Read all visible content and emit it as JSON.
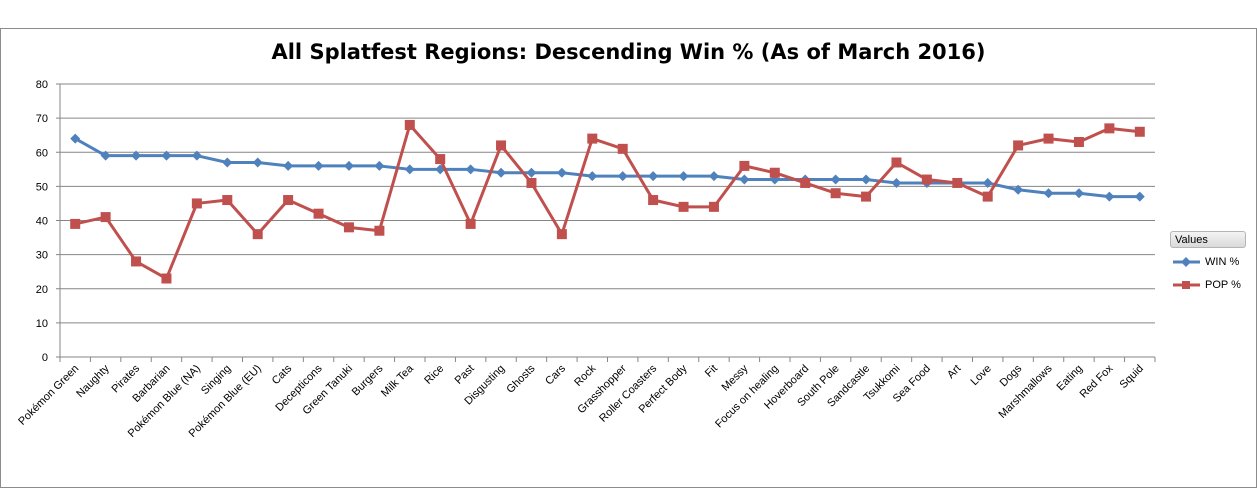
{
  "chart_data": {
    "type": "line",
    "title": "All Splatfest Regions: Descending Win % (As of March 2016)",
    "xlabel": "",
    "ylabel": "",
    "ylim": [
      0,
      80
    ],
    "yticks": [
      0,
      10,
      20,
      30,
      40,
      50,
      60,
      70,
      80
    ],
    "grid": true,
    "legend_title": "Values",
    "legend_position": "right",
    "categories": [
      "Pokémon Green",
      "Naughty",
      "Pirates",
      "Barbarian",
      "Pokémon Blue (NA)",
      "Singing",
      "Pokémon Blue (EU)",
      "Cats",
      "Decepticons",
      "Green Tanuki",
      "Burgers",
      "Milk Tea",
      "Rice",
      "Past",
      "Disgusting",
      "Ghosts",
      "Cars",
      "Rock",
      "Grasshopper",
      "Roller Coasters",
      "Perfect Body",
      "Fit",
      "Messy",
      "Focus on healing",
      "Hoverboard",
      "South Pole",
      "Sandcastle",
      "Tsukkomi",
      "Sea Food",
      "Art",
      "Love",
      "Dogs",
      "Marshmallows",
      "Eating",
      "Red Fox",
      "Squid"
    ],
    "series": [
      {
        "name": "WIN %",
        "color": "#4f81bd",
        "marker": "diamond",
        "values": [
          64,
          59,
          59,
          59,
          59,
          57,
          57,
          56,
          56,
          56,
          56,
          55,
          55,
          55,
          54,
          54,
          54,
          53,
          53,
          53,
          53,
          53,
          52,
          52,
          52,
          52,
          52,
          51,
          51,
          51,
          51,
          49,
          48,
          48,
          47,
          47
        ]
      },
      {
        "name": "POP %",
        "color": "#c0504d",
        "marker": "square",
        "values": [
          39,
          41,
          28,
          23,
          45,
          46,
          36,
          46,
          42,
          38,
          37,
          68,
          58,
          39,
          62,
          51,
          36,
          64,
          61,
          46,
          44,
          44,
          56,
          54,
          51,
          48,
          47,
          57,
          52,
          51,
          47,
          62,
          64,
          63,
          67,
          66
        ]
      }
    ]
  }
}
